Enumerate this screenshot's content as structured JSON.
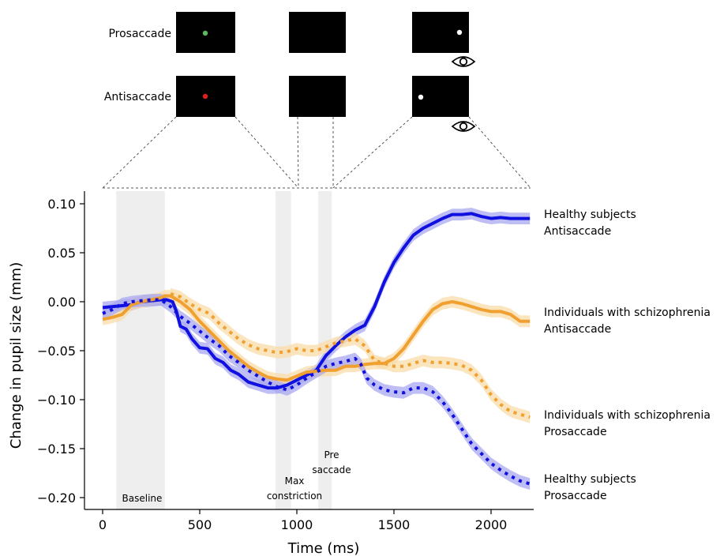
{
  "panels": {
    "prosaccade_label": "Prosaccade",
    "antisaccade_label": "Antisaccade",
    "prosaccade_cue_color": "#5cb85c",
    "antisaccade_cue_color": "#e02020",
    "target_color": "#ffffff",
    "eye_icon": "eye-icon"
  },
  "chart_data": {
    "type": "line",
    "xlabel": "Time (ms)",
    "ylabel": "Change in pupil size (mm)",
    "xlim": [
      -100,
      2200
    ],
    "ylim": [
      -0.21,
      0.112
    ],
    "xticks": [
      0,
      500,
      1000,
      1500,
      2000
    ],
    "xtick_labels": [
      "0",
      "500",
      "1000",
      "1500",
      "2000"
    ],
    "yticks": [
      0.1,
      0.05,
      0.0,
      -0.05,
      -0.1,
      -0.15,
      -0.2
    ],
    "ytick_labels": [
      "0.10",
      "0.05",
      "0.00",
      "−0.05",
      "−0.10",
      "−0.15",
      "−0.20"
    ],
    "regions": [
      {
        "label": "Baseline",
        "x0": 70,
        "x1": 320
      },
      {
        "label": "Max\nconstriction",
        "x0": 890,
        "x1": 970
      },
      {
        "label": "Pre\nsaccade",
        "x0": 1110,
        "x1": 1180
      }
    ],
    "series": [
      {
        "name": "Healthy subjects\nAntisaccade",
        "color": "#1010e0",
        "band": "#a8a8f0",
        "dash": "solid",
        "x": [
          0,
          100,
          150,
          200,
          250,
          300,
          330,
          360,
          380,
          400,
          430,
          460,
          500,
          540,
          580,
          620,
          660,
          700,
          750,
          800,
          850,
          900,
          950,
          1000,
          1050,
          1100,
          1150,
          1200,
          1250,
          1300,
          1350,
          1400,
          1450,
          1500,
          1550,
          1600,
          1650,
          1700,
          1750,
          1800,
          1850,
          1900,
          1950,
          2000,
          2050,
          2100,
          2150,
          2200
        ],
        "y": [
          -0.006,
          -0.004,
          -0.003,
          0.0,
          0.001,
          0.002,
          0.002,
          0.0,
          -0.01,
          -0.025,
          -0.028,
          -0.038,
          -0.047,
          -0.048,
          -0.058,
          -0.062,
          -0.07,
          -0.074,
          -0.082,
          -0.085,
          -0.088,
          -0.088,
          -0.085,
          -0.08,
          -0.075,
          -0.07,
          -0.055,
          -0.045,
          -0.036,
          -0.029,
          -0.024,
          -0.005,
          0.02,
          0.04,
          0.055,
          0.068,
          0.075,
          0.08,
          0.085,
          0.089,
          0.089,
          0.09,
          0.087,
          0.085,
          0.086,
          0.085,
          0.085,
          0.085
        ]
      },
      {
        "name": "Individuals with schizophrenia\nAntisaccade",
        "color": "#f0a030",
        "band": "#f8dca8",
        "dash": "solid",
        "x": [
          0,
          50,
          100,
          150,
          200,
          250,
          300,
          320,
          350,
          400,
          450,
          500,
          550,
          600,
          650,
          700,
          750,
          800,
          850,
          900,
          950,
          1000,
          1050,
          1100,
          1150,
          1200,
          1250,
          1300,
          1350,
          1400,
          1450,
          1500,
          1550,
          1600,
          1650,
          1700,
          1750,
          1800,
          1850,
          1900,
          1950,
          2000,
          2050,
          2100,
          2150,
          2200
        ],
        "y": [
          -0.018,
          -0.016,
          -0.013,
          -0.003,
          0.0,
          0.002,
          0.004,
          0.006,
          0.006,
          0.0,
          -0.008,
          -0.02,
          -0.03,
          -0.04,
          -0.05,
          -0.058,
          -0.066,
          -0.072,
          -0.077,
          -0.079,
          -0.08,
          -0.076,
          -0.072,
          -0.071,
          -0.07,
          -0.07,
          -0.066,
          -0.066,
          -0.064,
          -0.063,
          -0.063,
          -0.058,
          -0.048,
          -0.034,
          -0.02,
          -0.008,
          -0.002,
          0.0,
          -0.002,
          -0.005,
          -0.008,
          -0.01,
          -0.01,
          -0.013,
          -0.02,
          -0.02
        ]
      },
      {
        "name": "Individuals with schizophrenia\nProsaccade",
        "color": "#f0a030",
        "band": "#f8dca8",
        "dash": "dotted",
        "x": [
          350,
          400,
          450,
          500,
          550,
          600,
          650,
          700,
          750,
          800,
          850,
          900,
          950,
          1000,
          1050,
          1100,
          1150,
          1200,
          1250,
          1300,
          1350,
          1400,
          1450,
          1500,
          1550,
          1600,
          1650,
          1700,
          1750,
          1800,
          1850,
          1900,
          1950,
          2000,
          2050,
          2100,
          2150,
          2200
        ],
        "y": [
          0.008,
          0.005,
          -0.002,
          -0.008,
          -0.012,
          -0.022,
          -0.03,
          -0.038,
          -0.044,
          -0.048,
          -0.05,
          -0.052,
          -0.051,
          -0.048,
          -0.05,
          -0.05,
          -0.046,
          -0.042,
          -0.04,
          -0.038,
          -0.045,
          -0.06,
          -0.063,
          -0.066,
          -0.066,
          -0.063,
          -0.06,
          -0.062,
          -0.062,
          -0.063,
          -0.065,
          -0.07,
          -0.08,
          -0.095,
          -0.105,
          -0.112,
          -0.115,
          -0.118
        ]
      },
      {
        "name": "Healthy subjects\nProsaccade",
        "color": "#1010e0",
        "band": "#a8a8f0",
        "dash": "dotted",
        "x": [
          0,
          50,
          100,
          150,
          200,
          250,
          300,
          350,
          400,
          450,
          500,
          550,
          600,
          650,
          700,
          750,
          800,
          850,
          900,
          950,
          1000,
          1050,
          1100,
          1150,
          1200,
          1250,
          1300,
          1330,
          1360,
          1400,
          1450,
          1500,
          1550,
          1600,
          1650,
          1700,
          1750,
          1800,
          1850,
          1900,
          1950,
          2000,
          2050,
          2100,
          2150,
          2200
        ],
        "y": [
          -0.012,
          -0.008,
          -0.002,
          0.0,
          0.001,
          0.002,
          0.002,
          -0.005,
          -0.015,
          -0.022,
          -0.03,
          -0.038,
          -0.045,
          -0.055,
          -0.062,
          -0.07,
          -0.076,
          -0.082,
          -0.087,
          -0.09,
          -0.085,
          -0.078,
          -0.072,
          -0.066,
          -0.063,
          -0.061,
          -0.058,
          -0.064,
          -0.078,
          -0.085,
          -0.09,
          -0.092,
          -0.093,
          -0.088,
          -0.088,
          -0.092,
          -0.102,
          -0.115,
          -0.13,
          -0.145,
          -0.155,
          -0.165,
          -0.172,
          -0.178,
          -0.183,
          -0.186
        ]
      }
    ]
  }
}
